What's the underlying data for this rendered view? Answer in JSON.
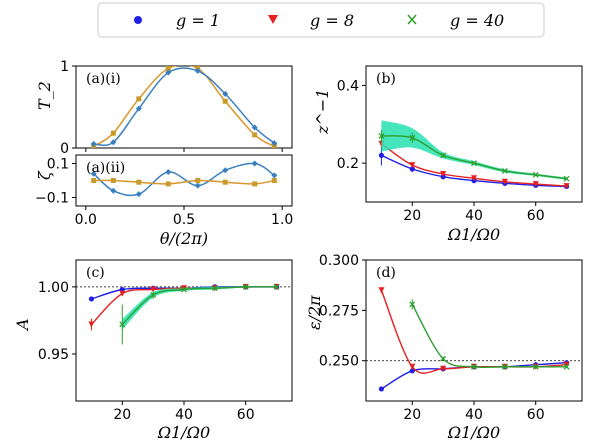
{
  "legend": {
    "entries": [
      {
        "label": "g = 1",
        "color": "#1f1fe6",
        "marker": "circle"
      },
      {
        "label": "g = 8",
        "color": "#e61f1f",
        "marker": "triangle-down"
      },
      {
        "label": "g = 40",
        "color": "#2ca02c",
        "marker": "x"
      }
    ]
  },
  "colors": {
    "blue": "#1f1fe6",
    "red": "#e61f1f",
    "green": "#2ca02c",
    "band": "#27e0b0",
    "curve_blue": "#3a7fc0",
    "curve_orange": "#d9962a",
    "marker_orange": "#c89a2a"
  },
  "chart_data": [
    {
      "id": "a-i",
      "type": "line",
      "panel_label": "(a)(i)",
      "xlabel": "",
      "ylabel": "T_2",
      "xlim": [
        -0.05,
        1.05
      ],
      "ylim": [
        0,
        1
      ],
      "yticks": [
        "0",
        "1"
      ],
      "series": [
        {
          "color": "#d9962a",
          "x": [
            0.04,
            0.14,
            0.27,
            0.42,
            0.57,
            0.71,
            0.86,
            0.96
          ],
          "y": [
            0.02,
            0.18,
            0.6,
            0.97,
            0.97,
            0.57,
            0.16,
            0.02
          ]
        },
        {
          "color": "#3a7fc0",
          "x": [
            0.04,
            0.14,
            0.27,
            0.42,
            0.57,
            0.71,
            0.86,
            0.96
          ],
          "y": [
            0.05,
            0.07,
            0.48,
            0.92,
            0.94,
            0.66,
            0.25,
            0.06
          ]
        }
      ]
    },
    {
      "id": "a-ii",
      "type": "line",
      "panel_label": "(a)(ii)",
      "xlabel": "θ/(2π)",
      "ylabel": "ζ",
      "xlim": [
        -0.05,
        1.05
      ],
      "ylim": [
        -0.15,
        0.15
      ],
      "xticks": [
        "0.0",
        "0.5",
        "1.0"
      ],
      "yticks": [
        "0.1",
        "−0.1"
      ],
      "series": [
        {
          "color": "#3a7fc0",
          "x": [
            0.04,
            0.14,
            0.27,
            0.42,
            0.57,
            0.71,
            0.86,
            0.96
          ],
          "y": [
            0.04,
            -0.06,
            -0.08,
            0.05,
            -0.03,
            0.06,
            0.1,
            0.03
          ]
        },
        {
          "color": "#d9962a",
          "x": [
            0.04,
            0.14,
            0.27,
            0.42,
            0.57,
            0.71,
            0.86,
            0.96
          ],
          "y": [
            0.0,
            0.0,
            -0.01,
            -0.02,
            0.0,
            -0.01,
            -0.02,
            0.0
          ]
        }
      ]
    },
    {
      "id": "b",
      "type": "line",
      "panel_label": "(b)",
      "xlabel": "Ω1/Ω0",
      "ylabel": "z^−1",
      "xlim": [
        5,
        75
      ],
      "ylim": [
        0.1,
        0.45
      ],
      "xticks": [
        "20",
        "40",
        "60"
      ],
      "yticks": [
        "0.2",
        "0.4"
      ],
      "series": [
        {
          "name": "g = 1",
          "x": [
            10,
            20,
            30,
            40,
            50,
            60,
            70
          ],
          "y": [
            0.22,
            0.185,
            0.165,
            0.155,
            0.148,
            0.143,
            0.14
          ]
        },
        {
          "name": "g = 8",
          "x": [
            10,
            20,
            30,
            40,
            50,
            60,
            70
          ],
          "y": [
            0.25,
            0.195,
            0.172,
            0.161,
            0.152,
            0.146,
            0.141
          ]
        },
        {
          "name": "g = 40",
          "x": [
            10,
            20,
            30,
            40,
            50,
            60,
            70
          ],
          "y": [
            0.27,
            0.265,
            0.22,
            0.2,
            0.18,
            0.17,
            0.16
          ]
        }
      ]
    },
    {
      "id": "c",
      "type": "line",
      "panel_label": "(c)",
      "xlabel": "Ω1/Ω0",
      "ylabel": "A",
      "xlim": [
        5,
        75
      ],
      "ylim": [
        0.915,
        1.02
      ],
      "xticks": [
        "20",
        "40",
        "60"
      ],
      "yticks": [
        "0.95",
        "1.00"
      ],
      "series": [
        {
          "name": "g = 1",
          "x": [
            10,
            20,
            30,
            40,
            50,
            60,
            70
          ],
          "y": [
            0.991,
            0.998,
            0.999,
            0.999,
            1.0,
            1.0,
            1.0
          ]
        },
        {
          "name": "g = 8",
          "x": [
            10,
            20,
            30,
            40,
            50,
            60,
            70
          ],
          "y": [
            0.972,
            0.995,
            0.998,
            0.999,
            0.999,
            1.0,
            1.0
          ]
        },
        {
          "name": "g = 40",
          "x": [
            20,
            30,
            40,
            50,
            60,
            70
          ],
          "y": [
            0.972,
            0.994,
            0.998,
            0.999,
            1.0,
            1.0
          ]
        }
      ]
    },
    {
      "id": "d",
      "type": "line",
      "panel_label": "(d)",
      "xlabel": "Ω1/Ω0",
      "ylabel": "ε/2π",
      "xlim": [
        5,
        75
      ],
      "ylim": [
        0.23,
        0.3
      ],
      "xticks": [
        "20",
        "40",
        "60"
      ],
      "yticks": [
        "0.250",
        "0.275",
        "0.300"
      ],
      "series": [
        {
          "name": "g = 1",
          "x": [
            10,
            20,
            30,
            40,
            50,
            60,
            70
          ],
          "y": [
            0.236,
            0.245,
            0.246,
            0.247,
            0.247,
            0.248,
            0.249
          ]
        },
        {
          "name": "g = 8",
          "x": [
            10,
            20,
            30,
            40,
            50,
            60,
            70
          ],
          "y": [
            0.285,
            0.247,
            0.246,
            0.247,
            0.247,
            0.247,
            0.248
          ]
        },
        {
          "name": "g = 40",
          "x": [
            20,
            30,
            40,
            50,
            60,
            70
          ],
          "y": [
            0.278,
            0.251,
            0.247,
            0.247,
            0.247,
            0.247
          ]
        }
      ]
    }
  ]
}
